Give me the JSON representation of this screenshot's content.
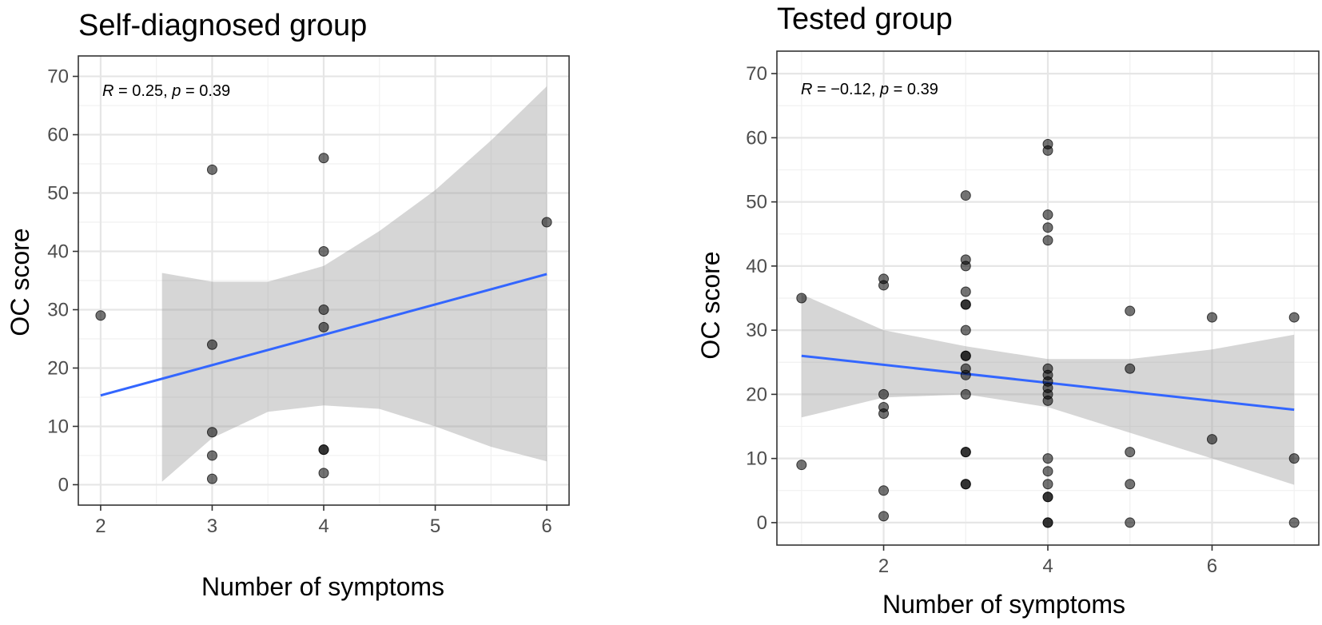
{
  "chart_data": [
    {
      "type": "scatter",
      "title": "Self-diagnosed group",
      "xlabel": "Number of symptoms",
      "ylabel": "OC score",
      "annotation": {
        "r_symbol": "R",
        "r_value": " = 0.25, ",
        "p_symbol": "p",
        "p_value": " = 0.39"
      },
      "xlim": [
        1.8,
        6.2
      ],
      "ylim": [
        -3.5,
        73.5
      ],
      "x_ticks": [
        2,
        3,
        4,
        5,
        6
      ],
      "y_ticks": [
        0,
        10,
        20,
        30,
        40,
        50,
        60,
        70
      ],
      "grid": true,
      "points": [
        {
          "x": 2,
          "y": 29
        },
        {
          "x": 3,
          "y": 54
        },
        {
          "x": 3,
          "y": 24
        },
        {
          "x": 3,
          "y": 9
        },
        {
          "x": 3,
          "y": 5
        },
        {
          "x": 3,
          "y": 1
        },
        {
          "x": 4,
          "y": 56
        },
        {
          "x": 4,
          "y": 40
        },
        {
          "x": 4,
          "y": 30
        },
        {
          "x": 4,
          "y": 27
        },
        {
          "x": 4,
          "y": 6
        },
        {
          "x": 4,
          "y": 6
        },
        {
          "x": 4,
          "y": 2
        },
        {
          "x": 6,
          "y": 45
        }
      ],
      "fit": {
        "x": [
          2,
          6
        ],
        "y": [
          15.3,
          36.1
        ],
        "band": {
          "x": [
            2.55,
            3,
            3.5,
            4,
            4.5,
            5,
            5.5,
            6
          ],
          "lower": [
            0.5,
            8.0,
            12.5,
            13.6,
            13.0,
            10.0,
            6.5,
            4.0
          ],
          "upper": [
            36.3,
            34.8,
            34.8,
            37.5,
            43.5,
            50.5,
            59.0,
            68.3
          ]
        }
      }
    },
    {
      "type": "scatter",
      "title": "Tested group",
      "xlabel": "Number of symptoms",
      "ylabel": "OC score",
      "annotation": {
        "r_symbol": "R",
        "r_value": " = −0.12, ",
        "p_symbol": "p",
        "p_value": " = 0.39"
      },
      "xlim": [
        0.7,
        7.3
      ],
      "ylim": [
        -3.5,
        73.5
      ],
      "x_ticks": [
        2,
        4,
        6
      ],
      "x_minor": [
        1,
        3,
        5,
        7
      ],
      "y_ticks": [
        0,
        10,
        20,
        30,
        40,
        50,
        60,
        70
      ],
      "grid": true,
      "points": [
        {
          "x": 1,
          "y": 35
        },
        {
          "x": 1,
          "y": 9
        },
        {
          "x": 2,
          "y": 38
        },
        {
          "x": 2,
          "y": 37
        },
        {
          "x": 2,
          "y": 20
        },
        {
          "x": 2,
          "y": 18
        },
        {
          "x": 2,
          "y": 17
        },
        {
          "x": 2,
          "y": 5
        },
        {
          "x": 2,
          "y": 1
        },
        {
          "x": 3,
          "y": 51
        },
        {
          "x": 3,
          "y": 41
        },
        {
          "x": 3,
          "y": 40
        },
        {
          "x": 3,
          "y": 36
        },
        {
          "x": 3,
          "y": 34
        },
        {
          "x": 3,
          "y": 34
        },
        {
          "x": 3,
          "y": 30
        },
        {
          "x": 3,
          "y": 26
        },
        {
          "x": 3,
          "y": 26
        },
        {
          "x": 3,
          "y": 24
        },
        {
          "x": 3,
          "y": 23
        },
        {
          "x": 3,
          "y": 20
        },
        {
          "x": 3,
          "y": 11
        },
        {
          "x": 3,
          "y": 11
        },
        {
          "x": 3,
          "y": 6
        },
        {
          "x": 3,
          "y": 6
        },
        {
          "x": 4,
          "y": 59
        },
        {
          "x": 4,
          "y": 58
        },
        {
          "x": 4,
          "y": 48
        },
        {
          "x": 4,
          "y": 46
        },
        {
          "x": 4,
          "y": 44
        },
        {
          "x": 4,
          "y": 24
        },
        {
          "x": 4,
          "y": 23
        },
        {
          "x": 4,
          "y": 22
        },
        {
          "x": 4,
          "y": 21
        },
        {
          "x": 4,
          "y": 20
        },
        {
          "x": 4,
          "y": 19
        },
        {
          "x": 4,
          "y": 10
        },
        {
          "x": 4,
          "y": 8
        },
        {
          "x": 4,
          "y": 6
        },
        {
          "x": 4,
          "y": 4
        },
        {
          "x": 4,
          "y": 4
        },
        {
          "x": 4,
          "y": 0
        },
        {
          "x": 4,
          "y": 0
        },
        {
          "x": 5,
          "y": 33
        },
        {
          "x": 5,
          "y": 24
        },
        {
          "x": 5,
          "y": 11
        },
        {
          "x": 5,
          "y": 6
        },
        {
          "x": 5,
          "y": 0
        },
        {
          "x": 6,
          "y": 32
        },
        {
          "x": 6,
          "y": 13
        },
        {
          "x": 7,
          "y": 32
        },
        {
          "x": 7,
          "y": 10
        },
        {
          "x": 7,
          "y": 0
        }
      ],
      "fit": {
        "x": [
          1,
          7
        ],
        "y": [
          26.0,
          17.6
        ],
        "band": {
          "x": [
            1,
            2,
            3,
            4,
            5,
            6,
            7
          ],
          "lower": [
            16.4,
            19.5,
            20.0,
            18.0,
            14.0,
            10.0,
            5.9
          ],
          "upper": [
            35.6,
            30.0,
            27.5,
            25.5,
            25.5,
            27.0,
            29.3
          ]
        }
      }
    }
  ]
}
